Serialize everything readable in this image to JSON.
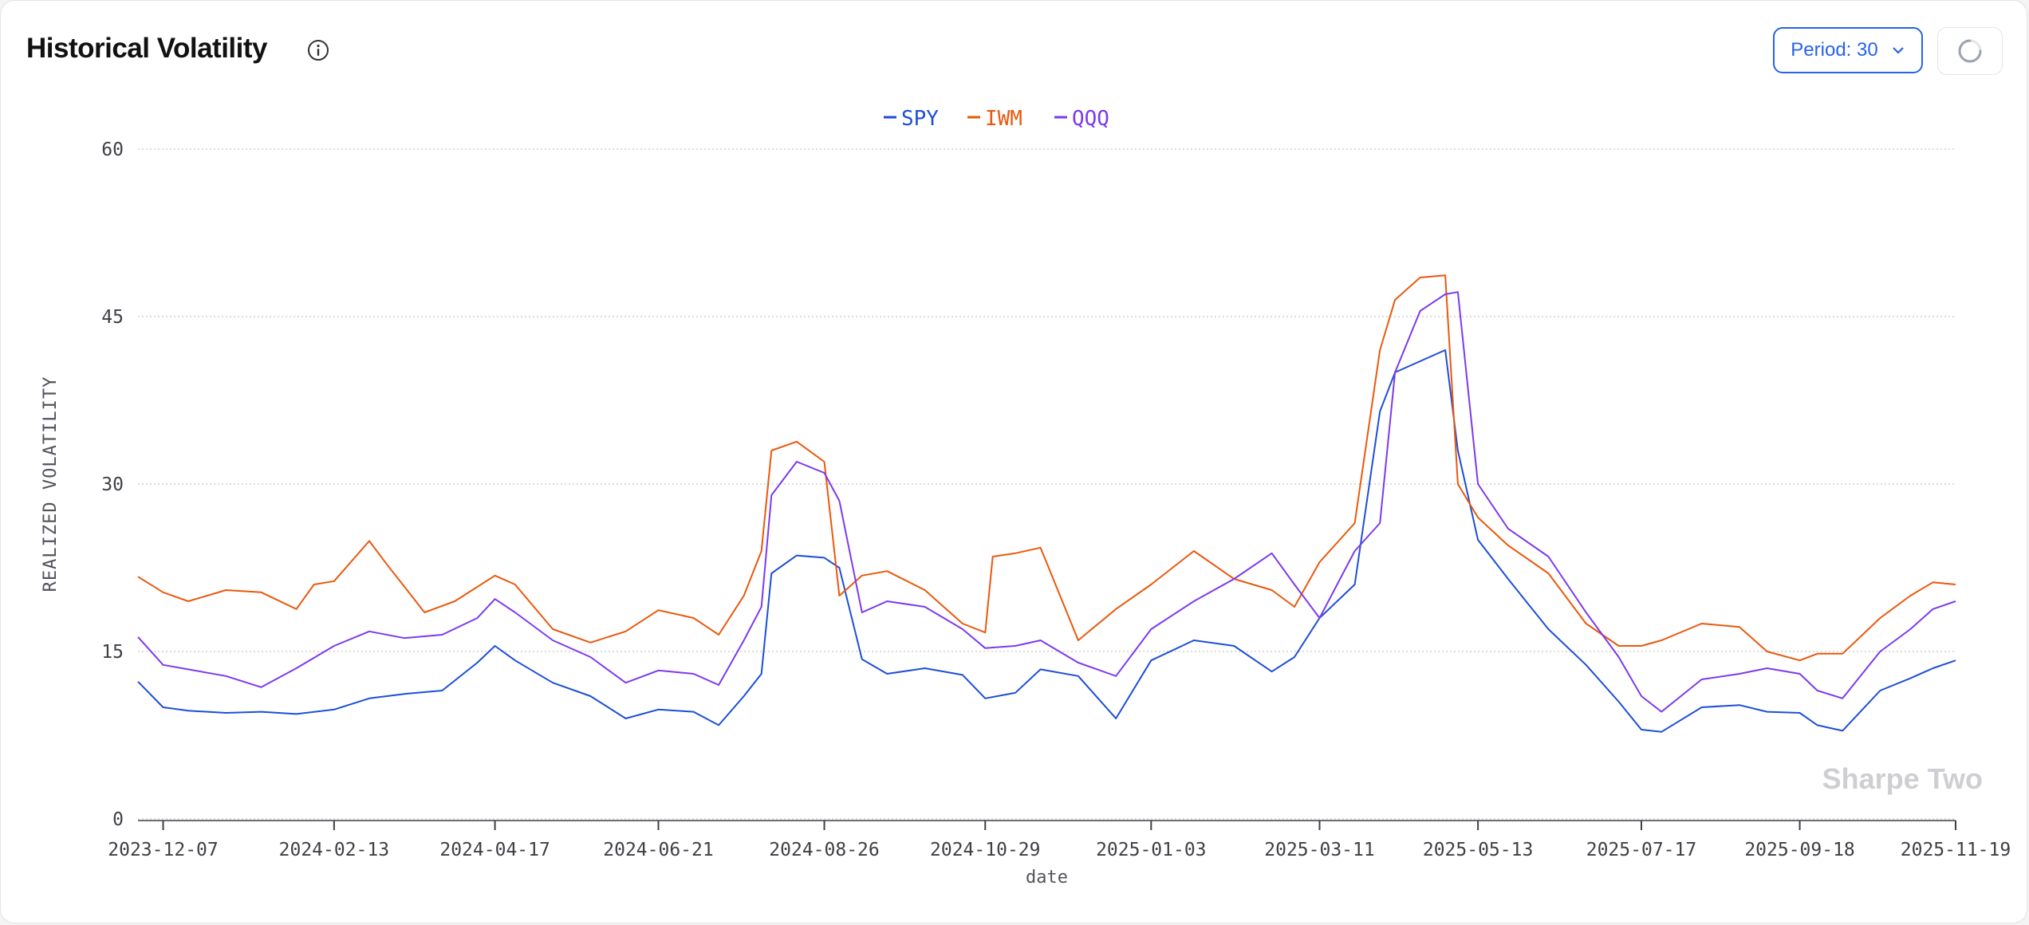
{
  "header": {
    "title": "Historical Volatility",
    "period_label": "Period: 30"
  },
  "watermark": "Sharpe Two",
  "colors": {
    "SPY": "#1d4ed8",
    "IWM": "#ea580c",
    "QQQ": "#7c3aed",
    "accent": "#2563eb"
  },
  "chart_data": {
    "type": "line",
    "xlabel": "date",
    "ylabel": "REALIZED VOLATILITY",
    "ylim": [
      0,
      60
    ],
    "yticks": [
      0,
      15,
      30,
      45,
      60
    ],
    "xlim": [
      "2023-11-27",
      "2025-11-19"
    ],
    "xticks": [
      "2023-12-07",
      "2024-02-13",
      "2024-04-17",
      "2024-06-21",
      "2024-08-26",
      "2024-10-29",
      "2025-01-03",
      "2025-03-11",
      "2025-05-13",
      "2025-07-17",
      "2025-09-18",
      "2025-11-19"
    ],
    "grid": true,
    "legend": "top-center",
    "series": [
      {
        "name": "SPY",
        "x": [
          "2023-11-27",
          "2023-12-07",
          "2023-12-17",
          "2024-01-01",
          "2024-01-15",
          "2024-01-29",
          "2024-02-13",
          "2024-02-27",
          "2024-03-12",
          "2024-03-27",
          "2024-04-10",
          "2024-04-17",
          "2024-04-25",
          "2024-05-10",
          "2024-05-25",
          "2024-06-08",
          "2024-06-21",
          "2024-07-05",
          "2024-07-15",
          "2024-07-25",
          "2024-08-01",
          "2024-08-05",
          "2024-08-15",
          "2024-08-26",
          "2024-09-01",
          "2024-09-10",
          "2024-09-20",
          "2024-10-05",
          "2024-10-20",
          "2024-10-29",
          "2024-11-10",
          "2024-11-20",
          "2024-12-05",
          "2024-12-20",
          "2025-01-03",
          "2025-01-20",
          "2025-02-05",
          "2025-02-20",
          "2025-03-01",
          "2025-03-11",
          "2025-03-25",
          "2025-04-04",
          "2025-04-10",
          "2025-04-20",
          "2025-04-30",
          "2025-05-05",
          "2025-05-13",
          "2025-05-25",
          "2025-06-10",
          "2025-06-25",
          "2025-07-08",
          "2025-07-17",
          "2025-07-25",
          "2025-08-10",
          "2025-08-25",
          "2025-09-05",
          "2025-09-18",
          "2025-09-25",
          "2025-10-05",
          "2025-10-20",
          "2025-11-01",
          "2025-11-10",
          "2025-11-19"
        ],
        "values": [
          12.3,
          10.0,
          9.7,
          9.5,
          9.6,
          9.4,
          9.8,
          10.8,
          11.2,
          11.5,
          14.0,
          15.5,
          14.2,
          12.2,
          11.0,
          9.0,
          9.8,
          9.6,
          8.4,
          11.0,
          13.0,
          22.0,
          23.6,
          23.4,
          22.5,
          14.3,
          13.0,
          13.5,
          12.9,
          10.8,
          11.3,
          13.4,
          12.8,
          9.0,
          14.2,
          16.0,
          15.5,
          13.2,
          14.5,
          18.0,
          21.0,
          36.5,
          40.0,
          41.0,
          42.0,
          33.0,
          25.0,
          21.5,
          17.0,
          13.8,
          10.5,
          8.0,
          7.8,
          10.0,
          10.2,
          9.6,
          9.5,
          8.4,
          7.9,
          11.5,
          12.6,
          13.5,
          14.2
        ]
      },
      {
        "name": "IWM",
        "x": [
          "2023-11-27",
          "2023-12-07",
          "2023-12-17",
          "2024-01-01",
          "2024-01-15",
          "2024-01-29",
          "2024-02-05",
          "2024-02-13",
          "2024-02-27",
          "2024-03-05",
          "2024-03-20",
          "2024-04-01",
          "2024-04-17",
          "2024-04-25",
          "2024-05-10",
          "2024-05-25",
          "2024-06-08",
          "2024-06-21",
          "2024-07-05",
          "2024-07-15",
          "2024-07-25",
          "2024-08-01",
          "2024-08-05",
          "2024-08-15",
          "2024-08-26",
          "2024-09-01",
          "2024-09-10",
          "2024-09-20",
          "2024-10-05",
          "2024-10-20",
          "2024-10-29",
          "2024-11-01",
          "2024-11-10",
          "2024-11-20",
          "2024-12-05",
          "2024-12-20",
          "2025-01-03",
          "2025-01-20",
          "2025-02-05",
          "2025-02-20",
          "2025-03-01",
          "2025-03-11",
          "2025-03-25",
          "2025-04-04",
          "2025-04-10",
          "2025-04-20",
          "2025-04-30",
          "2025-05-05",
          "2025-05-13",
          "2025-05-25",
          "2025-06-10",
          "2025-06-25",
          "2025-07-08",
          "2025-07-17",
          "2025-07-25",
          "2025-08-10",
          "2025-08-25",
          "2025-09-05",
          "2025-09-18",
          "2025-09-25",
          "2025-10-05",
          "2025-10-20",
          "2025-11-01",
          "2025-11-10",
          "2025-11-19"
        ],
        "values": [
          21.7,
          20.3,
          19.5,
          20.5,
          20.3,
          18.8,
          21.0,
          21.3,
          24.9,
          22.8,
          18.5,
          19.5,
          21.8,
          21.0,
          17.0,
          15.8,
          16.8,
          18.7,
          18.0,
          16.5,
          20.0,
          24.0,
          33.0,
          33.8,
          32.0,
          20.0,
          21.8,
          22.2,
          20.5,
          17.5,
          16.7,
          23.5,
          23.8,
          24.3,
          16.0,
          18.8,
          21.0,
          24.0,
          21.5,
          20.5,
          19.0,
          23.0,
          26.5,
          42.0,
          46.5,
          48.5,
          48.7,
          30.0,
          27.0,
          24.5,
          22.0,
          17.5,
          15.5,
          15.5,
          16.0,
          17.5,
          17.2,
          15.0,
          14.2,
          14.8,
          14.8,
          18.0,
          20.0,
          21.2,
          21.0
        ]
      },
      {
        "name": "QQQ",
        "x": [
          "2023-11-27",
          "2023-12-07",
          "2023-12-17",
          "2024-01-01",
          "2024-01-15",
          "2024-01-29",
          "2024-02-13",
          "2024-02-27",
          "2024-03-12",
          "2024-03-27",
          "2024-04-10",
          "2024-04-17",
          "2024-04-25",
          "2024-05-10",
          "2024-05-25",
          "2024-06-08",
          "2024-06-21",
          "2024-07-05",
          "2024-07-15",
          "2024-07-25",
          "2024-08-01",
          "2024-08-05",
          "2024-08-15",
          "2024-08-26",
          "2024-09-01",
          "2024-09-10",
          "2024-09-20",
          "2024-10-05",
          "2024-10-20",
          "2024-10-29",
          "2024-11-10",
          "2024-11-20",
          "2024-12-05",
          "2024-12-20",
          "2025-01-03",
          "2025-01-20",
          "2025-02-05",
          "2025-02-20",
          "2025-03-01",
          "2025-03-11",
          "2025-03-25",
          "2025-04-04",
          "2025-04-10",
          "2025-04-20",
          "2025-04-30",
          "2025-05-05",
          "2025-05-13",
          "2025-05-25",
          "2025-06-10",
          "2025-06-25",
          "2025-07-08",
          "2025-07-17",
          "2025-07-25",
          "2025-08-10",
          "2025-08-25",
          "2025-09-05",
          "2025-09-18",
          "2025-09-25",
          "2025-10-05",
          "2025-10-20",
          "2025-11-01",
          "2025-11-10",
          "2025-11-19"
        ],
        "values": [
          16.3,
          13.8,
          13.4,
          12.8,
          11.8,
          13.5,
          15.5,
          16.8,
          16.2,
          16.5,
          18.0,
          19.7,
          18.5,
          16.0,
          14.5,
          12.2,
          13.3,
          13.0,
          12.0,
          16.0,
          19.0,
          29.0,
          32.0,
          31.0,
          28.5,
          18.5,
          19.5,
          19.0,
          17.0,
          15.3,
          15.5,
          16.0,
          14.0,
          12.8,
          17.0,
          19.5,
          21.5,
          23.8,
          21.0,
          18.0,
          24.0,
          26.5,
          40.0,
          45.5,
          47.0,
          47.2,
          30.0,
          26.0,
          23.5,
          18.5,
          14.5,
          11.0,
          9.6,
          12.5,
          13.0,
          13.5,
          13.0,
          11.5,
          10.8,
          15.0,
          17.0,
          18.8,
          19.5
        ]
      }
    ]
  }
}
